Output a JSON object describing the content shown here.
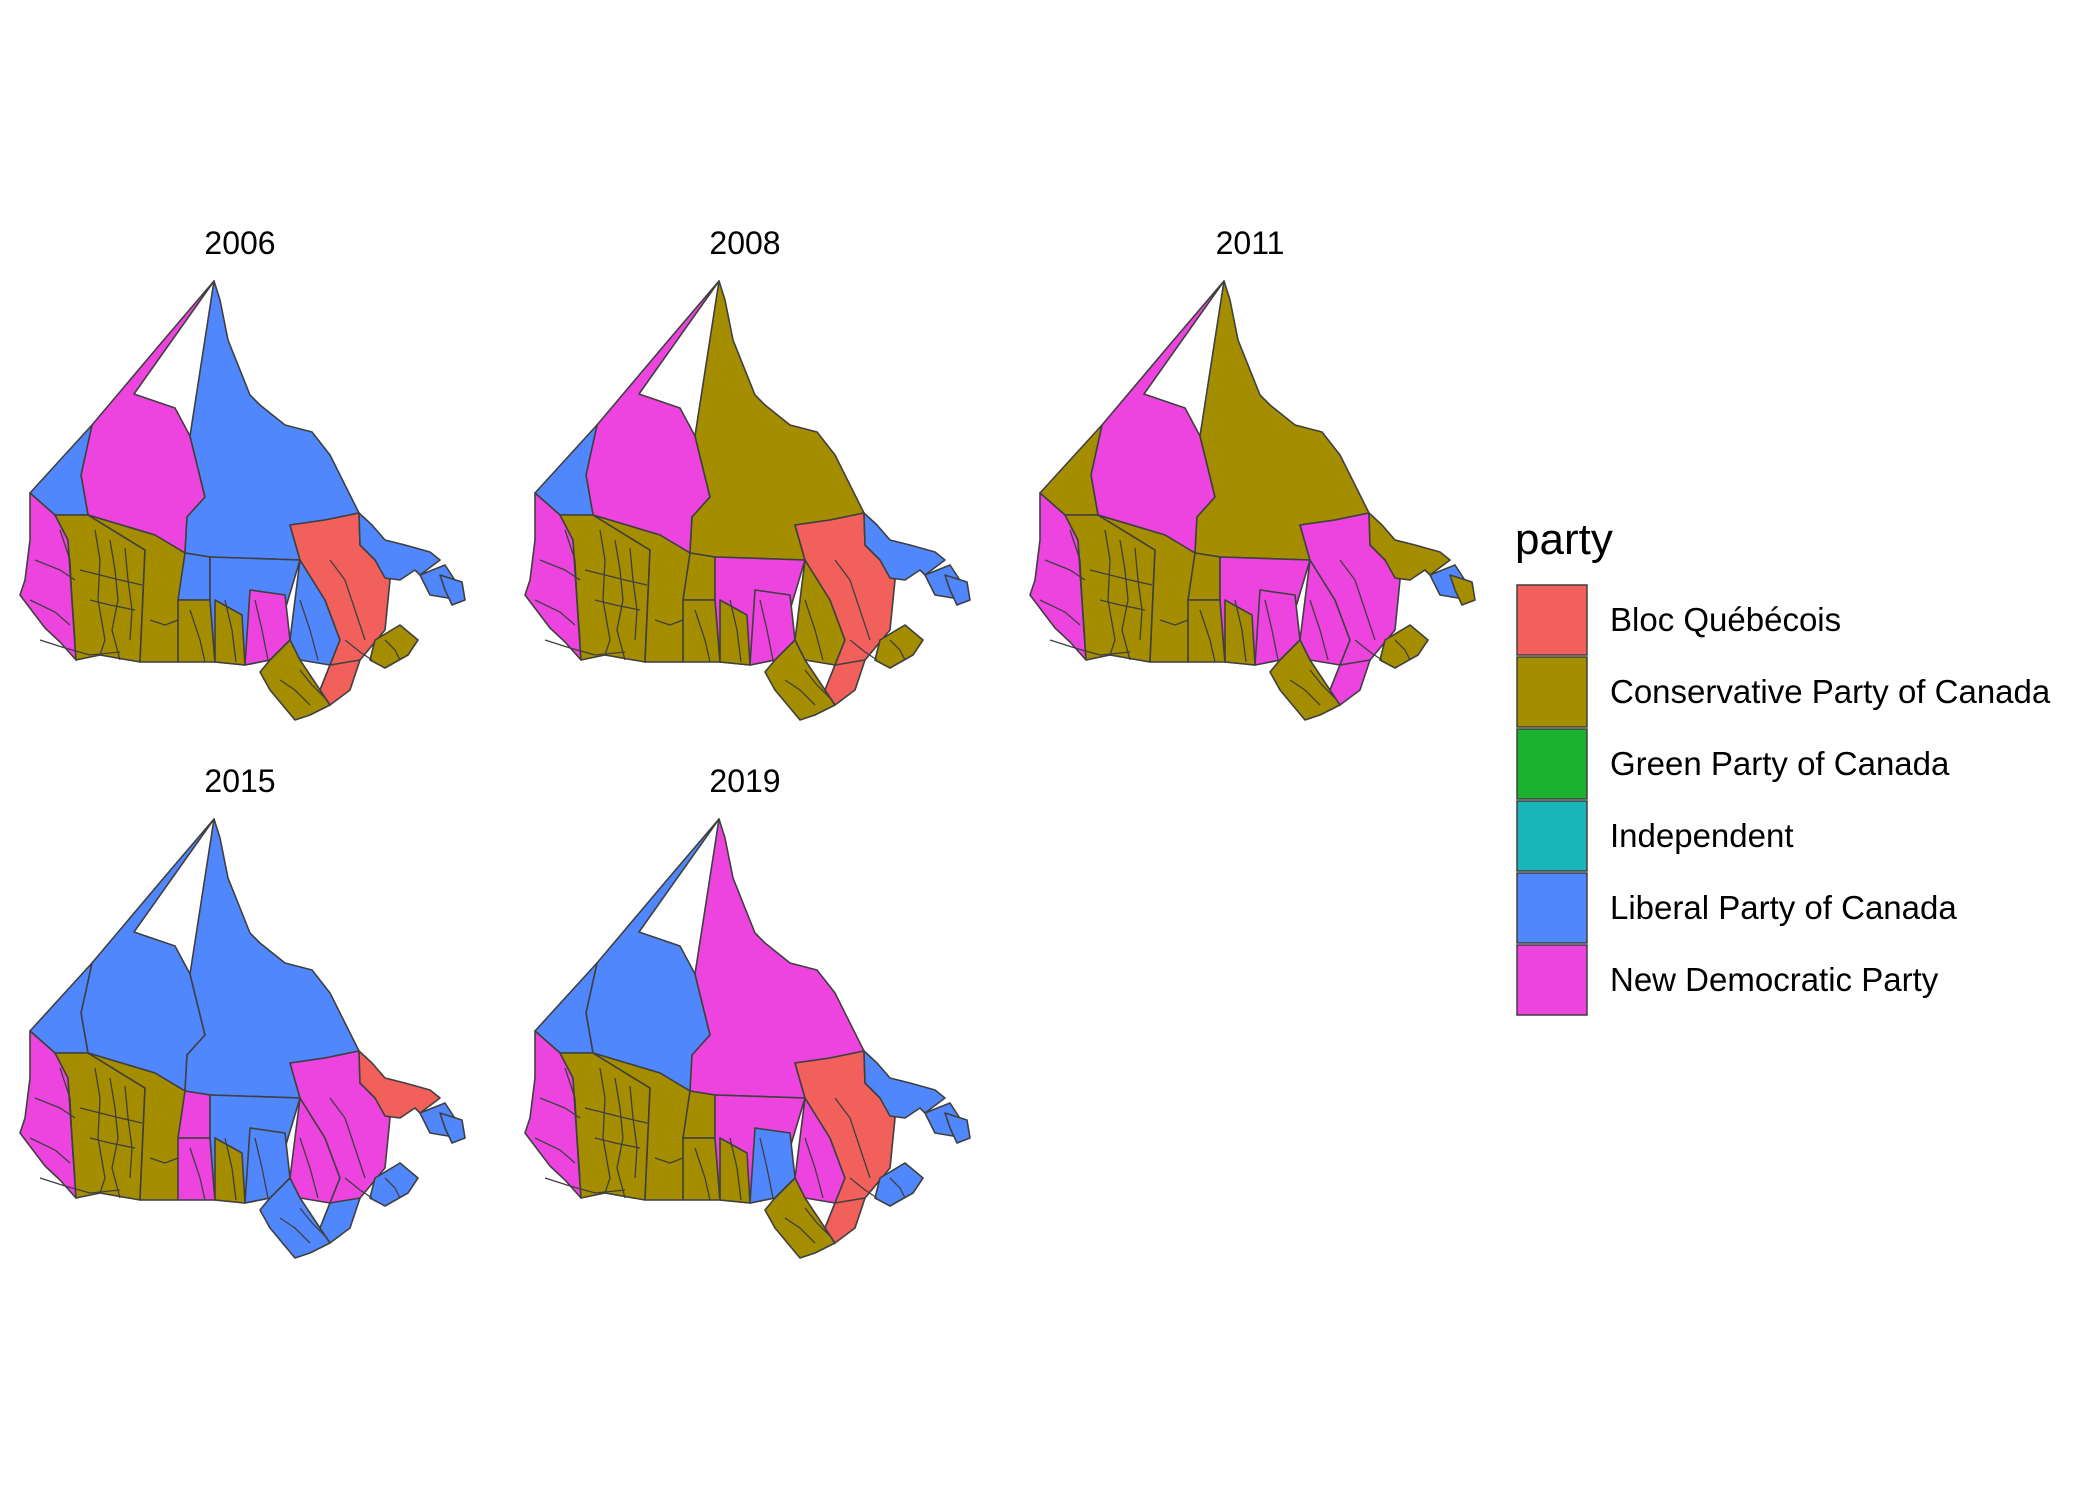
{
  "colors": {
    "Bloc Québécois": "#F2605C",
    "Conservative Party of Canada": "#A58D00",
    "Green Party of Canada": "#1AB22E",
    "Independent": "#1AB5B8",
    "Liberal Party of Canada": "#5187FD",
    "New Democratic Party": "#EE44DF"
  },
  "legend": {
    "title": "party",
    "entries": [
      "Bloc Québécois",
      "Conservative Party of Canada",
      "Green Party of Canada",
      "Independent",
      "Liberal Party of Canada",
      "New Democratic Party"
    ]
  },
  "panels": [
    {
      "year": "2006",
      "winners": {
        "yukon": "Liberal Party of Canada",
        "nwt": "New Democratic Party",
        "nunavut": "Liberal Party of Canada",
        "bc_coast": "New Democratic Party",
        "bc_interior": "Conservative Party of Canada",
        "alberta": "Conservative Party of Canada",
        "saskatchewan": "Conservative Party of Canada",
        "sask_north": "Liberal Party of Canada",
        "manitoba": "Liberal Party of Canada",
        "manitoba_south": "Conservative Party of Canada",
        "ontario_north": "Liberal Party of Canada",
        "ontario_nw": "New Democratic Party",
        "ontario_south": "Conservative Party of Canada",
        "quebec": "Bloc Québécois",
        "quebec_south": "Bloc Québécois",
        "labrador": "Liberal Party of Canada",
        "newfoundland": "Liberal Party of Canada",
        "maritimes": "Conservative Party of Canada",
        "northern_islands": "Liberal Party of Canada"
      }
    },
    {
      "year": "2008",
      "winners": {
        "yukon": "Liberal Party of Canada",
        "nwt": "New Democratic Party",
        "nunavut": "Conservative Party of Canada",
        "bc_coast": "New Democratic Party",
        "bc_interior": "Conservative Party of Canada",
        "alberta": "Conservative Party of Canada",
        "saskatchewan": "Conservative Party of Canada",
        "sask_north": "Conservative Party of Canada",
        "manitoba": "New Democratic Party",
        "manitoba_south": "Conservative Party of Canada",
        "ontario_north": "Conservative Party of Canada",
        "ontario_nw": "New Democratic Party",
        "ontario_south": "Conservative Party of Canada",
        "quebec": "Bloc Québécois",
        "quebec_south": "Bloc Québécois",
        "labrador": "Liberal Party of Canada",
        "newfoundland": "Liberal Party of Canada",
        "maritimes": "Conservative Party of Canada",
        "northern_islands": "Liberal Party of Canada"
      }
    },
    {
      "year": "2011",
      "winners": {
        "yukon": "Conservative Party of Canada",
        "nwt": "New Democratic Party",
        "nunavut": "Conservative Party of Canada",
        "bc_coast": "New Democratic Party",
        "bc_interior": "Conservative Party of Canada",
        "alberta": "Conservative Party of Canada",
        "saskatchewan": "Conservative Party of Canada",
        "sask_north": "Conservative Party of Canada",
        "manitoba": "New Democratic Party",
        "manitoba_south": "Conservative Party of Canada",
        "ontario_north": "New Democratic Party",
        "ontario_nw": "New Democratic Party",
        "ontario_south": "Conservative Party of Canada",
        "quebec": "New Democratic Party",
        "quebec_south": "New Democratic Party",
        "labrador": "Conservative Party of Canada",
        "newfoundland": "Liberal Party of Canada",
        "maritimes": "Conservative Party of Canada",
        "northern_islands": "Conservative Party of Canada"
      }
    },
    {
      "year": "2015",
      "winners": {
        "yukon": "Liberal Party of Canada",
        "nwt": "Liberal Party of Canada",
        "nunavut": "Liberal Party of Canada",
        "bc_coast": "New Democratic Party",
        "bc_interior": "Conservative Party of Canada",
        "alberta": "Conservative Party of Canada",
        "saskatchewan": "New Democratic Party",
        "sask_north": "New Democratic Party",
        "manitoba": "Liberal Party of Canada",
        "manitoba_south": "Conservative Party of Canada",
        "ontario_north": "New Democratic Party",
        "ontario_nw": "Liberal Party of Canada",
        "ontario_south": "Liberal Party of Canada",
        "quebec": "New Democratic Party",
        "quebec_south": "Liberal Party of Canada",
        "labrador": "Bloc Québécois",
        "newfoundland": "Liberal Party of Canada",
        "maritimes": "Liberal Party of Canada",
        "northern_islands": "Liberal Party of Canada"
      }
    },
    {
      "year": "2019",
      "winners": {
        "yukon": "Liberal Party of Canada",
        "nwt": "Liberal Party of Canada",
        "nunavut": "New Democratic Party",
        "bc_coast": "New Democratic Party",
        "bc_interior": "Conservative Party of Canada",
        "alberta": "Conservative Party of Canada",
        "saskatchewan": "Conservative Party of Canada",
        "sask_north": "Conservative Party of Canada",
        "manitoba": "New Democratic Party",
        "manitoba_south": "Conservative Party of Canada",
        "ontario_north": "New Democratic Party",
        "ontario_nw": "Liberal Party of Canada",
        "ontario_south": "Conservative Party of Canada",
        "quebec": "Bloc Québécois",
        "quebec_south": "Bloc Québécois",
        "labrador": "Liberal Party of Canada",
        "newfoundland": "Liberal Party of Canada",
        "maritimes": "Liberal Party of Canada",
        "northern_islands": "Liberal Party of Canada"
      }
    }
  ]
}
